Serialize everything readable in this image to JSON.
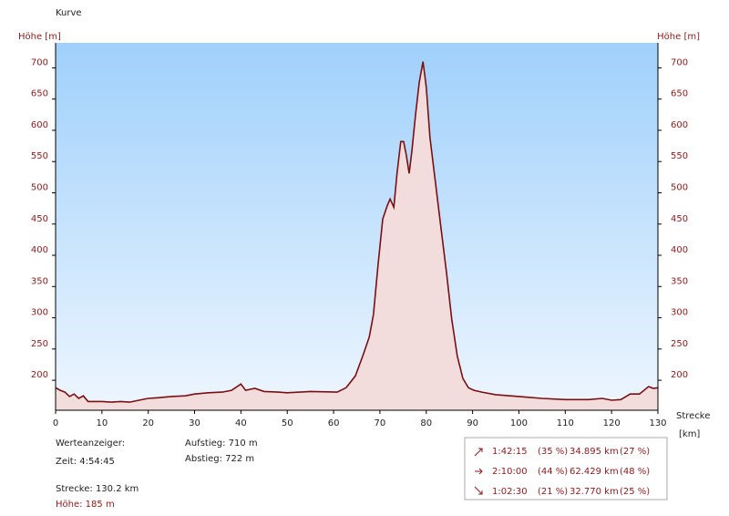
{
  "chart_data": {
    "type": "area",
    "title": "Kurve",
    "y_label": "Höhe [m]",
    "x_label": "Strecke",
    "x_unit": "[km]",
    "x": [
      0,
      1,
      2,
      3,
      4,
      5,
      6,
      7,
      8,
      10,
      12,
      14,
      16,
      18,
      20,
      22,
      25,
      28,
      30,
      33,
      36,
      38,
      40,
      41,
      43,
      45,
      48,
      50,
      55,
      60.8,
      62.7,
      64.7,
      66.3,
      67.7,
      68.6,
      69.6,
      70.6,
      71.6,
      72.2,
      73.0,
      73.7,
      74.5,
      75.1,
      75.7,
      76.3,
      76.9,
      77.7,
      78.5,
      79.3,
      80.0,
      80.8,
      82.0,
      83.2,
      84.4,
      85.5,
      86.7,
      87.9,
      89.1,
      90.3,
      92,
      95,
      100,
      105,
      110,
      115,
      118,
      120,
      122,
      124,
      126,
      128,
      129,
      130
    ],
    "values": [
      188,
      184,
      181,
      174,
      178,
      171,
      175,
      166,
      166,
      166,
      165,
      166,
      165,
      168,
      171,
      172,
      174,
      175,
      178,
      180,
      181,
      184,
      194,
      184,
      187,
      182,
      181,
      180,
      182,
      181,
      188,
      207,
      239,
      269,
      305,
      385,
      458,
      480,
      490,
      477,
      531,
      582,
      582,
      560,
      531,
      567,
      626,
      677,
      710,
      669,
      589,
      516,
      443,
      371,
      298,
      239,
      203,
      188,
      184,
      181,
      177,
      174,
      171,
      169,
      169,
      171,
      168,
      169,
      178,
      178,
      190,
      187,
      188
    ],
    "color": "#7a0f14",
    "fill_color": "#f2dcdc",
    "xlim": [
      0,
      130
    ],
    "ylim": [
      152,
      740
    ],
    "xticks": [
      0,
      10,
      20,
      30,
      40,
      50,
      60,
      70,
      80,
      90,
      100,
      110,
      120,
      130
    ],
    "yticks": [
      200,
      250,
      300,
      350,
      400,
      450,
      500,
      550,
      600,
      650,
      700
    ]
  },
  "info": {
    "heading": "Werteanzeiger:",
    "time": "Zeit: 4:54:45",
    "distance": "Strecke: 130.2 km",
    "height": "Höhe: 185 m",
    "ascent": "Aufstieg: 710 m",
    "descent": "Abstieg: 722 m"
  },
  "stats": [
    [
      "1:42:15",
      "(35 %)",
      "34.895 km",
      "(27 %)"
    ],
    [
      "2:10:00",
      "(44 %)",
      "62.429 km",
      "(48 %)"
    ],
    [
      "1:02:30",
      "(21 %)",
      "32.770 km",
      "(25 %)"
    ]
  ]
}
